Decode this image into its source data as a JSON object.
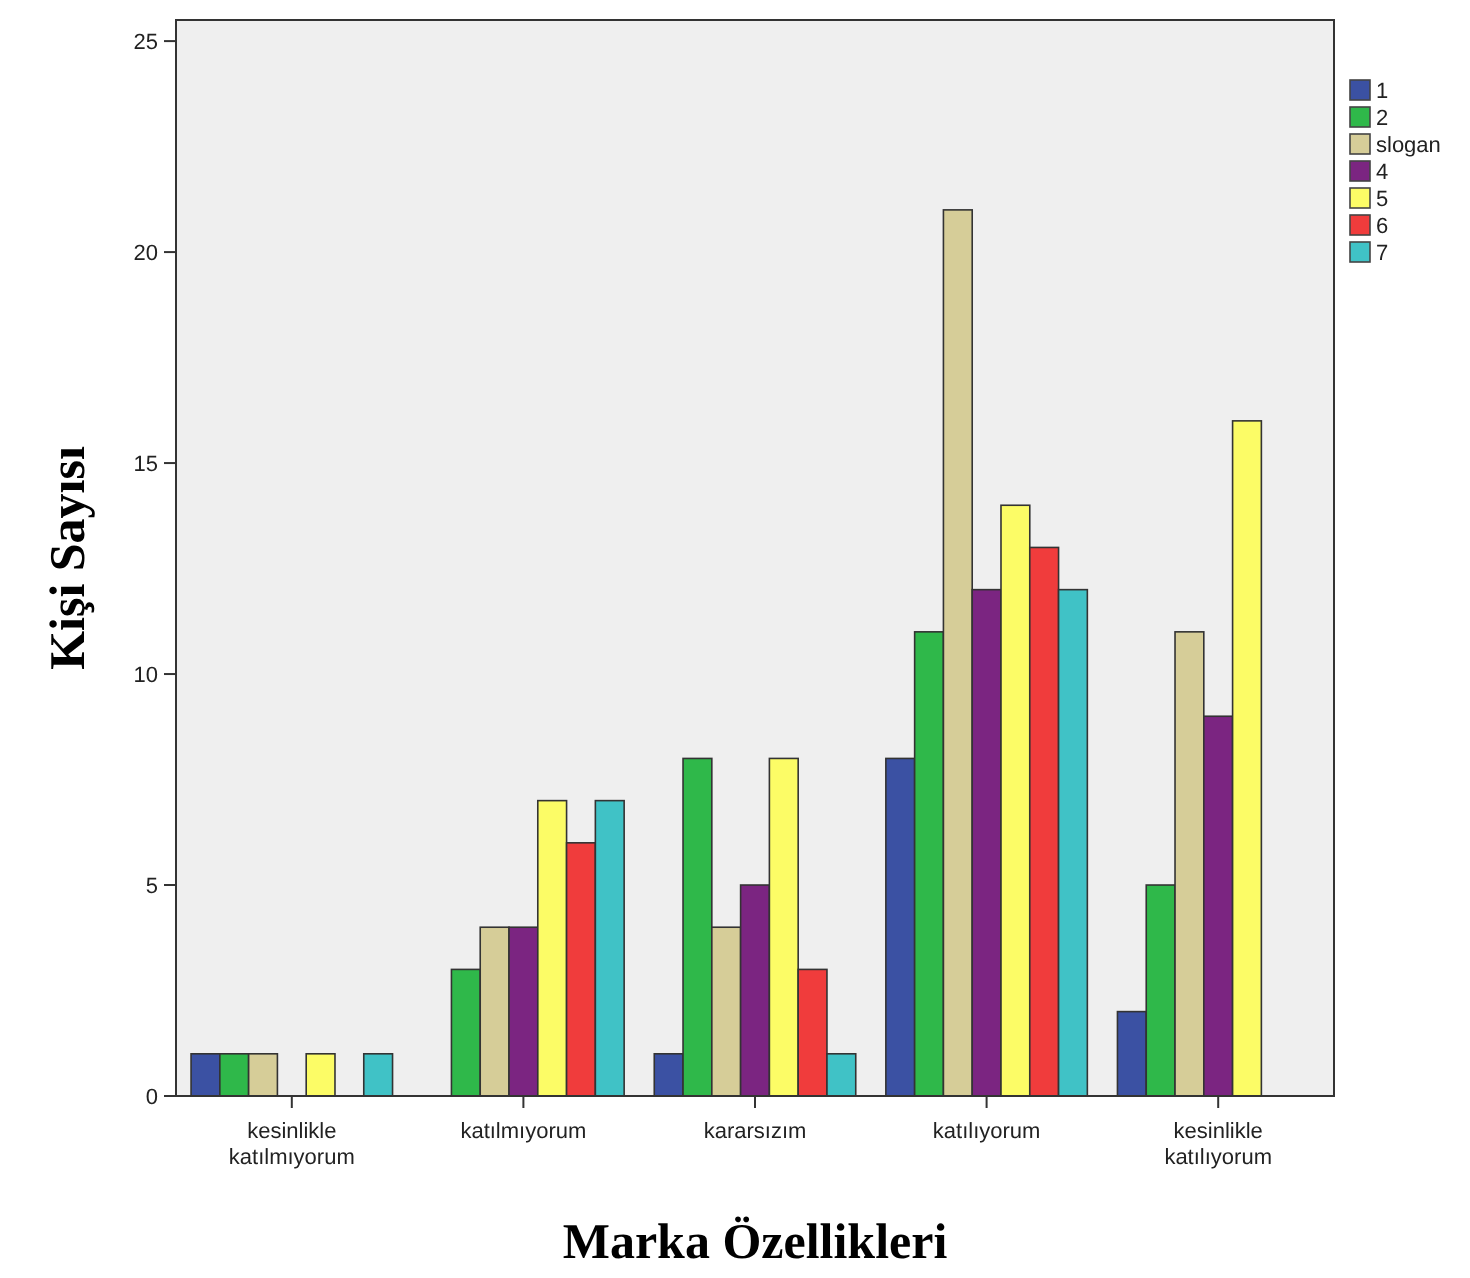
{
  "chart_data": {
    "type": "bar",
    "xlabel": "Marka Özellikleri",
    "ylabel": "Kişi Sayısı",
    "categories": [
      "kesinlikle katılmıyorum",
      "katılmıyorum",
      "kararsızım",
      "katılıyorum",
      "kesinlikle katılıyorum"
    ],
    "series": [
      {
        "name": "1",
        "color": "#3b51a3",
        "values": [
          1,
          null,
          1,
          8,
          2
        ]
      },
      {
        "name": "2",
        "color": "#2fb84a",
        "values": [
          1,
          3,
          8,
          11,
          5
        ]
      },
      {
        "name": "slogan",
        "color": "#d6cd98",
        "values": [
          1,
          4,
          4,
          21,
          11
        ]
      },
      {
        "name": "4",
        "color": "#7b2581",
        "values": [
          null,
          4,
          5,
          12,
          9
        ]
      },
      {
        "name": "5",
        "color": "#fcfc66",
        "values": [
          1,
          7,
          8,
          14,
          16
        ]
      },
      {
        "name": "6",
        "color": "#f03c3c",
        "values": [
          null,
          6,
          3,
          13,
          null
        ]
      },
      {
        "name": "7",
        "color": "#40c2c6",
        "values": [
          1,
          7,
          1,
          12,
          null
        ]
      }
    ],
    "ylim": [
      0,
      25.5
    ],
    "yticks": [
      0,
      5,
      10,
      15,
      20,
      25
    ],
    "grid": false,
    "legend": "top right"
  }
}
